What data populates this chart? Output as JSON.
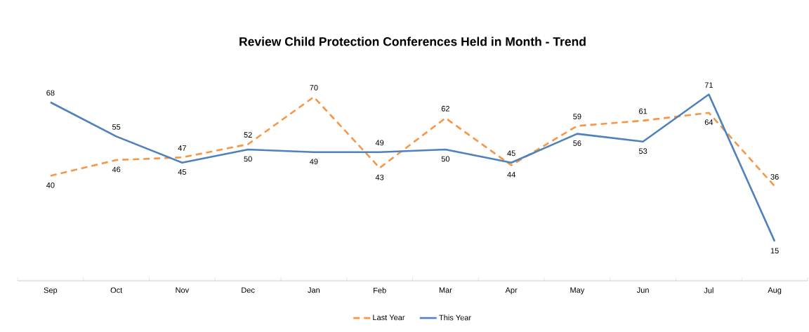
{
  "chart_data": {
    "type": "line",
    "title": "Review Child Protection Conferences Held in Month - Trend",
    "categories": [
      "Sep",
      "Oct",
      "Nov",
      "Dec",
      "Jan",
      "Feb",
      "Mar",
      "Apr",
      "May",
      "Jun",
      "Jul",
      "Aug"
    ],
    "series": [
      {
        "name": "Last Year",
        "color": "#f79646",
        "line_style": "dashed",
        "values": [
          40,
          46,
          47,
          52,
          70,
          43,
          62,
          44,
          59,
          61,
          64,
          36
        ]
      },
      {
        "name": "This Year",
        "color": "#4f81bd",
        "line_style": "solid",
        "values": [
          68,
          55,
          45,
          50,
          49,
          49,
          50,
          45,
          56,
          53,
          71,
          15
        ]
      }
    ],
    "data_labels": true,
    "legend": "bottom",
    "marker": "none",
    "grid": false,
    "tick_labels": "x"
  }
}
